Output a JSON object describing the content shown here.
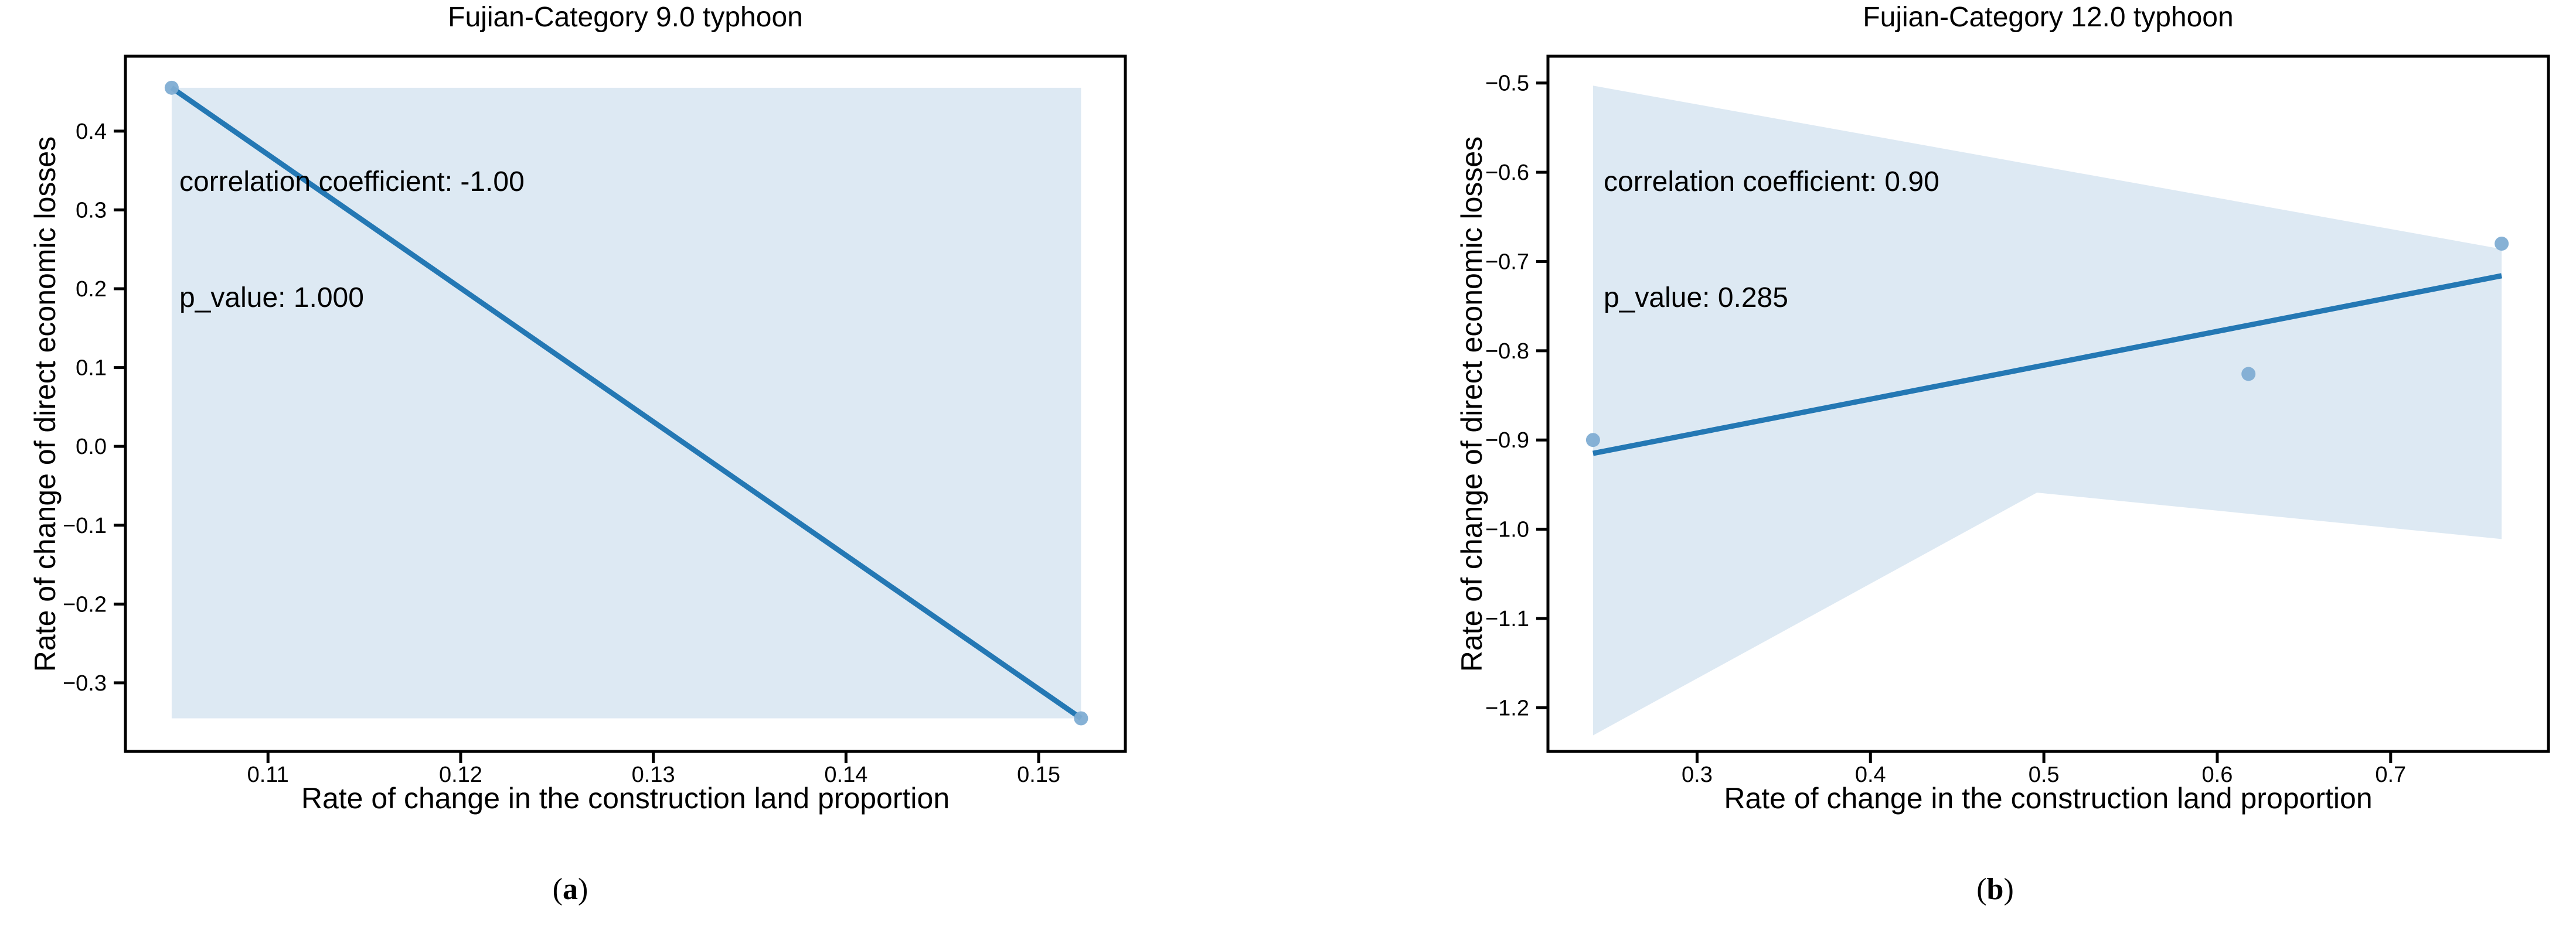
{
  "figure": {
    "background": "#ffffff",
    "captions": {
      "a": {
        "open": "(",
        "letter": "a",
        "close": ")"
      },
      "b": {
        "open": "(",
        "letter": "b",
        "close": ")"
      }
    }
  },
  "colors": {
    "regression_line": "#2478b4",
    "marker": "#7fadd3",
    "ci_band": "#dde9f3",
    "spine": "#000000",
    "tick_label": "#000000"
  },
  "chart_data": [
    {
      "type": "scatter",
      "title": "Fujian-Category 9.0 typhoon",
      "xlabel": "Rate of change in the construction land proportion",
      "ylabel": "Rate of change of direct economic losses",
      "annotation": [
        "correlation coefficient: -1.00",
        "p_value: 1.000"
      ],
      "correlation_coefficient": -1.0,
      "p_value": 1.0,
      "points": [
        [
          0.105,
          0.455
        ],
        [
          0.1522,
          -0.345
        ]
      ],
      "regression_line": [
        [
          0.105,
          0.455
        ],
        [
          0.1522,
          -0.345
        ]
      ],
      "ci_band": [
        [
          0.105,
          0.455
        ],
        [
          0.1522,
          0.455
        ],
        [
          0.1522,
          -0.345
        ],
        [
          0.105,
          -0.345
        ]
      ],
      "xlim": [
        0.1026,
        0.1545
      ],
      "ylim": [
        -0.387,
        0.495
      ],
      "xticks": [
        0.11,
        0.12,
        0.13,
        0.14,
        0.15
      ],
      "xtick_labels": [
        "0.11",
        "0.12",
        "0.13",
        "0.14",
        "0.15"
      ],
      "yticks": [
        0.4,
        0.3,
        0.2,
        0.1,
        0.0,
        -0.1,
        -0.2,
        -0.3
      ],
      "ytick_labels": [
        "0.4",
        "0.3",
        "0.2",
        "0.1",
        "0.0",
        "−0.1",
        "−0.2",
        "−0.3"
      ],
      "grid": false,
      "legend": null
    },
    {
      "type": "scatter",
      "title": "Fujian-Category 12.0 typhoon",
      "xlabel": "Rate of change in the construction land proportion",
      "ylabel": "Rate of change of direct economic losses",
      "annotation": [
        "correlation coefficient: 0.90",
        "p_value: 0.285"
      ],
      "correlation_coefficient": 0.9,
      "p_value": 0.285,
      "points": [
        [
          0.24,
          -0.9
        ],
        [
          0.618,
          -0.826
        ],
        [
          0.764,
          -0.68
        ]
      ],
      "regression_line": [
        [
          0.24,
          -0.915
        ],
        [
          0.764,
          -0.716
        ]
      ],
      "ci_band": [
        [
          0.24,
          -0.503
        ],
        [
          0.764,
          -0.686
        ],
        [
          0.764,
          -1.011
        ],
        [
          0.496,
          -0.959
        ],
        [
          0.24,
          -1.231
        ]
      ],
      "xlim": [
        0.214,
        0.791
      ],
      "ylim": [
        -1.249,
        -0.47
      ],
      "xticks": [
        0.3,
        0.4,
        0.5,
        0.6,
        0.7
      ],
      "xtick_labels": [
        "0.3",
        "0.4",
        "0.5",
        "0.6",
        "0.7"
      ],
      "yticks": [
        -0.5,
        -0.6,
        -0.7,
        -0.8,
        -0.9,
        -1.0,
        -1.1,
        -1.2
      ],
      "ytick_labels": [
        "−0.5",
        "−0.6",
        "−0.7",
        "−0.8",
        "−0.9",
        "−1.0",
        "−1.1",
        "−1.2"
      ],
      "grid": false,
      "legend": null
    }
  ]
}
